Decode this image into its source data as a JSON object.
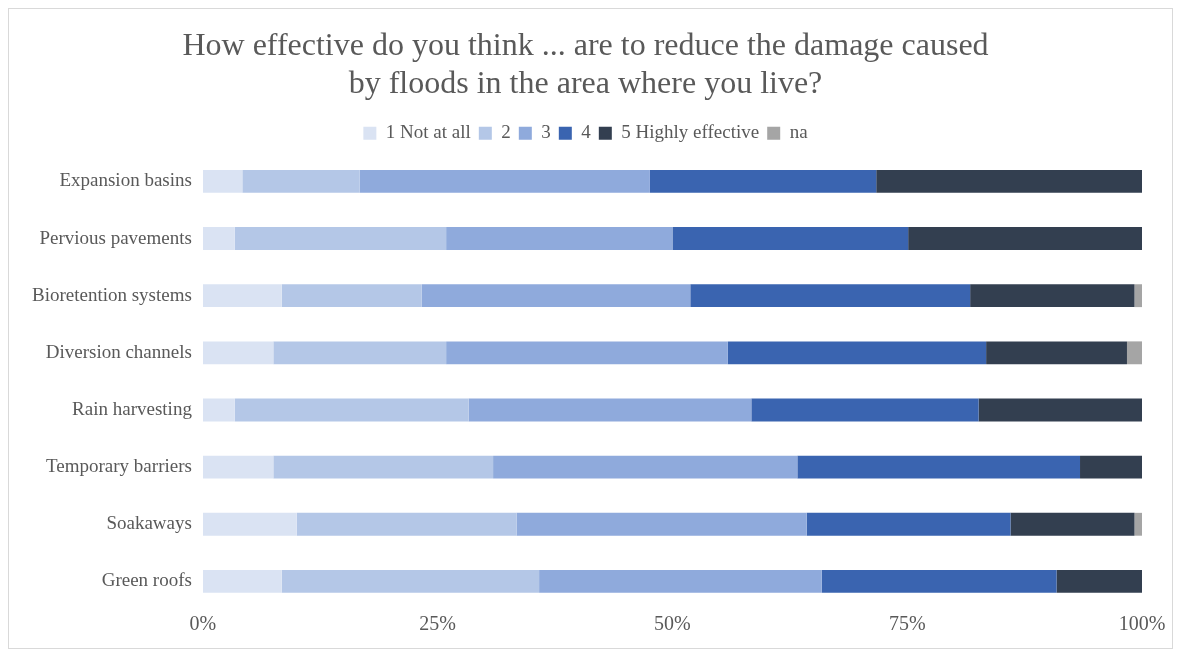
{
  "chart_data": {
    "type": "bar",
    "title": "How effective do you think ... are to reduce the damage caused by floods in the area where you live?",
    "orientation": "horizontal",
    "stacked": true,
    "legend": "top",
    "grid": false,
    "categories": [
      "Expansion basins",
      "Pervious pavements",
      "Bioretention systems",
      "Diversion channels",
      "Rain harvesting",
      "Temporary barriers",
      "Soakaways",
      "Green roofs"
    ],
    "series": [
      {
        "name": "1 Not at all",
        "color": "#dae3f3",
        "values": [
          4.2,
          3.4,
          8.4,
          7.5,
          3.4,
          7.5,
          10,
          8.4
        ]
      },
      {
        "name": "2",
        "color": "#b4c7e7",
        "values": [
          12.5,
          22.5,
          14.9,
          18.4,
          24.9,
          23.4,
          23.4,
          27.4
        ]
      },
      {
        "name": "3",
        "color": "#8faadc",
        "values": [
          30.9,
          24.1,
          28.6,
          30,
          30.1,
          32.4,
          30.9,
          30.1
        ]
      },
      {
        "name": "4",
        "color": "#3a64b0",
        "values": [
          24.1,
          25.1,
          29.8,
          27.5,
          24.2,
          30.1,
          21.7,
          25
        ]
      },
      {
        "name": "5 Highly effective",
        "color": "#333f50",
        "values": [
          28.3,
          24.9,
          17.5,
          15,
          17.4,
          6.6,
          13.2,
          9.1
        ]
      },
      {
        "name": "na",
        "color": "#a5a5a5",
        "values": [
          0,
          0,
          0.8,
          1.6,
          0,
          0,
          0.8,
          0
        ]
      }
    ],
    "xlim": [
      0,
      100
    ],
    "xticks": [
      {
        "value": 0,
        "label": "0%"
      },
      {
        "value": 25,
        "label": "25%"
      },
      {
        "value": 50,
        "label": "50%"
      },
      {
        "value": 75,
        "label": "75%"
      },
      {
        "value": 100,
        "label": "100%"
      }
    ]
  }
}
